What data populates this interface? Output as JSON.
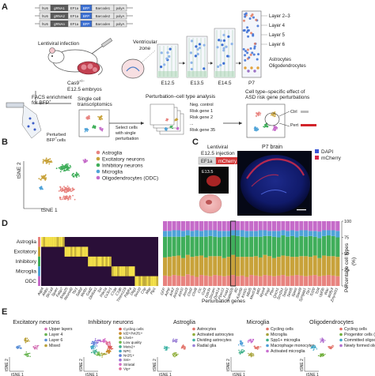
{
  "panels": {
    "a": "A",
    "b": "B",
    "c": "C",
    "d": "D",
    "e": "E"
  },
  "panel_a": {
    "constructs": [
      {
        "u6": "hU6",
        "grna": "gRNA1",
        "ef": "EF1a",
        "bfp": "BFP",
        "bc": "Barcode1",
        "pa": "polyA"
      },
      {
        "u6": "hU6",
        "grna": "gRNA2",
        "ef": "EF1a",
        "bfp": "BFP",
        "bc": "Barcode2",
        "pa": "polyA"
      },
      {
        "u6": "hU6",
        "grna": "gRNAn",
        "ef": "EF1a",
        "bfp": "BFP",
        "bc": "Barcoden",
        "pa": "polyA"
      }
    ],
    "lentiviral": "Lentiviral infection",
    "ventricular": "Ventricular",
    "zone": "zone",
    "cas9": "Cas9",
    "cas9_sup": "+/−",
    "embryos": "E12.5 embryos",
    "stages": [
      "E12.5",
      "E13.5",
      "E14.5",
      "P7"
    ],
    "layers": [
      "Layer 2–3",
      "Layer 4",
      "Layer 5",
      "Layer 6"
    ],
    "astro_oligo": [
      "Astrocytes",
      "Oligodendrocytes"
    ],
    "facs": [
      "FACS enrichment",
      "for BFP"
    ],
    "facs_sup": "+",
    "perturbed": [
      "Perturbed",
      "BFP"
    ],
    "perturbed_sup": "+",
    "perturbed_cells": "cells",
    "single_cell": [
      "Single cell",
      "transcriptomics"
    ],
    "select": [
      "Select cells",
      "with single",
      "perturbation"
    ],
    "perturbation_analysis": "Perturbation–cell type analysis",
    "risk_list": [
      "Neg. control",
      "Risk gene 1",
      "Risk gene 2",
      "...",
      "Risk gene 35"
    ],
    "effect_title": [
      "Cell type–specific effect of",
      "ASD risk gene perturbations"
    ],
    "ctrl": "Ctrl",
    "pert": "Pert"
  },
  "panel_b": {
    "ylabel": "tSNE 2",
    "xlabel": "tSNE 1",
    "legend": [
      {
        "label": "Astroglia",
        "color": "#e8837f"
      },
      {
        "label": "Excitatory neurons",
        "color": "#c8a23a"
      },
      {
        "label": "Inhibitory neurons",
        "color": "#3fae5a"
      },
      {
        "label": "Microglia",
        "color": "#4fa3d8"
      },
      {
        "label": "Oligodendrocytes (ODC)",
        "color": "#c56bc9"
      }
    ]
  },
  "panel_c": {
    "lenti": [
      "Lentiviral",
      "E12.5 injection"
    ],
    "ef1a": "EF1a",
    "mcherry": "mCherry",
    "e135": "E13.5",
    "p7": "P7 brain",
    "legend": [
      {
        "label": "DAPI",
        "color": "#3b56d6"
      },
      {
        "label": "mCherry",
        "color": "#d42b4a"
      }
    ]
  },
  "panel_d": {
    "row_labels": [
      "Astroglia",
      "Excitatory",
      "Inhibitory",
      "Microglia",
      "ODC"
    ],
    "genes": [
      "Aqp4",
      "Aldoc",
      "Slc1a3",
      "Sparc",
      "Fabp7",
      "Snap25",
      "Neurod2",
      "Tbr1",
      "Satb2",
      "Mef2c",
      "Gad2",
      "Dlx6os1",
      "Sst",
      "Pde1a",
      "Cx3cr1",
      "C1qa",
      "C1qb",
      "Tmem119",
      "Pdgfra",
      "Olig1",
      "Sox10",
      "Cnp",
      "Mbp",
      "Plp1"
    ],
    "xlabel": "Perturbation genes",
    "ylabel": [
      "Percentage cell types",
      "(%)"
    ],
    "yticks": [
      "0",
      "25",
      "50",
      "75",
      "100"
    ]
  },
  "chart_data": {
    "type": "bar",
    "stacked": true,
    "title": "",
    "xlabel": "Perturbation genes",
    "ylabel": "Percentage cell types (%)",
    "ylim": [
      0,
      100
    ],
    "categories": [
      "GFP",
      "Adnp",
      "Ank2",
      "Arid1b",
      "Ash1l",
      "Asxl3",
      "Chd2",
      "Chd8",
      "Cic",
      "Cul3",
      "Ddx3x",
      "Dscam",
      "Dyrk1a",
      "Fbxo11",
      "Foxp1",
      "Gatad2b",
      "Ilf2",
      "Kdm5b",
      "Kmt2c",
      "Mbd5",
      "Med13l",
      "Mll1",
      "Myst4",
      "Pogz",
      "Pten",
      "Qrich1",
      "Scn2a1",
      "Setd2",
      "Setd5",
      "Spast",
      "Stard9",
      "Syngap1",
      "Tbr1",
      "Tcf20",
      "Tcf4",
      "Upf3b",
      "Wac",
      "Wdfy3",
      "Zmynd11"
    ],
    "series": [
      {
        "name": "Astroglia",
        "values": [
          16,
          15,
          17,
          16,
          15,
          18,
          16,
          14,
          17,
          16,
          15,
          17,
          16,
          15,
          16,
          17,
          15,
          16,
          14,
          17,
          16,
          15,
          17,
          16,
          15,
          16,
          17,
          15,
          16,
          17,
          16,
          15,
          16,
          17,
          15,
          16,
          17,
          16,
          15
        ]
      },
      {
        "name": "Excitatory neurons",
        "values": [
          28,
          30,
          29,
          31,
          28,
          30,
          29,
          32,
          30,
          28,
          31,
          29,
          30,
          28,
          29,
          31,
          30,
          29,
          31,
          28,
          30,
          29,
          31,
          30,
          28,
          29,
          30,
          31,
          29,
          28,
          30,
          31,
          29,
          30,
          28,
          31,
          29,
          30,
          30
        ]
      },
      {
        "name": "Inhibitory neurons",
        "values": [
          32,
          31,
          30,
          29,
          33,
          30,
          31,
          30,
          29,
          32,
          31,
          30,
          29,
          33,
          31,
          30,
          32,
          31,
          30,
          31,
          30,
          32,
          29,
          31,
          33,
          30,
          31,
          30,
          32,
          30,
          31,
          30,
          32,
          29,
          31,
          30,
          32,
          31,
          30
        ]
      },
      {
        "name": "Microglia",
        "values": [
          9,
          9,
          10,
          10,
          9,
          8,
          9,
          10,
          9,
          10,
          9,
          10,
          10,
          9,
          9,
          8,
          9,
          10,
          10,
          9,
          9,
          10,
          9,
          8,
          9,
          10,
          8,
          9,
          9,
          10,
          9,
          10,
          8,
          9,
          10,
          9,
          8,
          9,
          10
        ]
      },
      {
        "name": "Oligodendrocytes (ODC)",
        "values": [
          15,
          15,
          14,
          14,
          15,
          14,
          15,
          14,
          15,
          14,
          14,
          14,
          15,
          15,
          15,
          14,
          14,
          14,
          15,
          15,
          15,
          14,
          14,
          15,
          15,
          15,
          14,
          15,
          14,
          15,
          14,
          14,
          15,
          15,
          16,
          14,
          14,
          14,
          15
        ]
      }
    ],
    "highlighted_category": "Gatad2b"
  },
  "panel_e": {
    "titles": [
      "Excitatory neurons",
      "Inhibitory neurons",
      "Astroglia",
      "Microglia",
      "Oligodendrocytes"
    ],
    "ylabel": "tSNE 2",
    "xlabel": "tSNE 1",
    "legends": [
      [
        {
          "label": "Upper layers",
          "color": "#d46fb3"
        },
        {
          "label": "Layer 4",
          "color": "#66b34f"
        },
        {
          "label": "Layer 6",
          "color": "#5a8fd6"
        },
        {
          "label": "Mixed",
          "color": "#b9a03a"
        }
      ],
      [
        {
          "label": "Cycling cells",
          "color": "#d9554f"
        },
        {
          "label": "Id2+/Nr2f1+",
          "color": "#c98a2a"
        },
        {
          "label": "Lhx6+",
          "color": "#a8a63a"
        },
        {
          "label": "Low quality",
          "color": "#6fb84a"
        },
        {
          "label": "Meis2+",
          "color": "#3fae8e"
        },
        {
          "label": "NPC",
          "color": "#3fa7c4"
        },
        {
          "label": "Nr2f1+",
          "color": "#5f7fd9"
        },
        {
          "label": "Sst+",
          "color": "#9b6fd6"
        },
        {
          "label": "Striatal",
          "color": "#d46fc6"
        },
        {
          "label": "Vip+",
          "color": "#e0709a"
        }
      ],
      [
        {
          "label": "Astrocytes",
          "color": "#e2736a"
        },
        {
          "label": "Activated astrocytes",
          "color": "#8fae3a"
        },
        {
          "label": "Dividing astrocytes",
          "color": "#3fb3a5"
        },
        {
          "label": "Radial glia",
          "color": "#9a7fd6"
        }
      ],
      [
        {
          "label": "Cycling cells",
          "color": "#e2736a"
        },
        {
          "label": "Microglia",
          "color": "#a6a23a"
        },
        {
          "label": "Spp1+ microglia",
          "color": "#3fb08a"
        },
        {
          "label": "Macrophage monocytes",
          "color": "#4f9ed8"
        },
        {
          "label": "Activated microglia",
          "color": "#c86fd0"
        }
      ],
      [
        {
          "label": "Cycling cells",
          "color": "#e2736a"
        },
        {
          "label": "Progenitor cells (OPC)",
          "color": "#6fae3a"
        },
        {
          "label": "Committed oligodendrocytes (COP)",
          "color": "#3fa8c8"
        },
        {
          "label": "Newly formed oligodendrocytes (NFOL)",
          "color": "#b06fd0"
        }
      ]
    ]
  }
}
